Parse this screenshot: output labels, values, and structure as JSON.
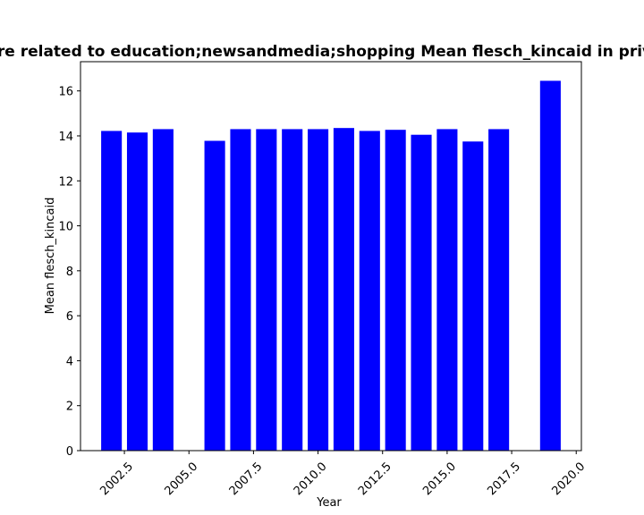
{
  "chart_data": {
    "type": "bar",
    "title": "are related to education;newsandmedia;shopping Mean flesch_kincaid in priva",
    "xlabel": "Year",
    "ylabel": "Mean flesch_kincaid",
    "x": [
      2002,
      2003,
      2004,
      2006,
      2007,
      2008,
      2009,
      2010,
      2011,
      2012,
      2013,
      2014,
      2015,
      2016,
      2017,
      2019
    ],
    "values": [
      14.22,
      14.15,
      14.3,
      13.78,
      14.3,
      14.3,
      14.3,
      14.3,
      14.35,
      14.22,
      14.27,
      14.05,
      14.3,
      13.75,
      14.3,
      16.45
    ],
    "xlim": [
      2000.8,
      2020.2
    ],
    "ylim": [
      0,
      17.3
    ],
    "xticks": [
      "2002.5",
      "2005.0",
      "2007.5",
      "2010.0",
      "2012.5",
      "2015.0",
      "2017.5",
      "2020.0"
    ],
    "xtick_values": [
      2002.5,
      2005.0,
      2007.5,
      2010.0,
      2012.5,
      2015.0,
      2017.5,
      2020.0
    ],
    "yticks": [
      "0",
      "2",
      "4",
      "6",
      "8",
      "10",
      "12",
      "14",
      "16"
    ],
    "ytick_values": [
      0,
      2,
      4,
      6,
      8,
      10,
      12,
      14,
      16
    ],
    "bar_color": "#0000ff",
    "grid": false,
    "legend": "none"
  }
}
